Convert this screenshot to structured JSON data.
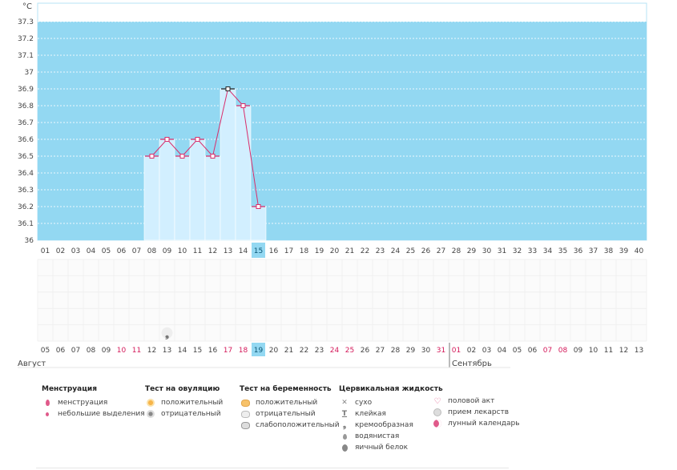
{
  "chart_data": {
    "type": "line",
    "unit_label": "°C",
    "y_ticks": [
      "36",
      "36.1",
      "36.2",
      "36.3",
      "36.4",
      "36.5",
      "36.6",
      "36.7",
      "36.8",
      "36.9",
      "37",
      "37.1",
      "37.2",
      "37.3"
    ],
    "ylim": [
      36,
      37.3
    ],
    "cycle_days": [
      "01",
      "02",
      "03",
      "04",
      "05",
      "06",
      "07",
      "08",
      "09",
      "10",
      "11",
      "12",
      "13",
      "14",
      "15",
      "16",
      "17",
      "18",
      "19",
      "20",
      "21",
      "22",
      "23",
      "24",
      "25",
      "26",
      "27",
      "28",
      "29",
      "30",
      "31",
      "32",
      "33",
      "34",
      "35",
      "36",
      "37",
      "38",
      "39",
      "40"
    ],
    "calendar_dates": [
      "05",
      "06",
      "07",
      "08",
      "09",
      "10",
      "11",
      "12",
      "13",
      "14",
      "15",
      "16",
      "17",
      "18",
      "19",
      "20",
      "21",
      "22",
      "23",
      "24",
      "25",
      "26",
      "27",
      "28",
      "29",
      "30",
      "31",
      "01",
      "02",
      "03",
      "04",
      "05",
      "06",
      "07",
      "08",
      "09",
      "10",
      "11",
      "12",
      "13"
    ],
    "weekend_date_indices": [
      5,
      6,
      12,
      13,
      19,
      20,
      26,
      27,
      33,
      34
    ],
    "highlighted_index": 14,
    "series": [
      {
        "x": [
          8,
          9,
          10,
          11,
          12,
          13,
          14,
          15
        ],
        "y": [
          36.5,
          36.6,
          36.5,
          36.6,
          36.5,
          36.9,
          36.8,
          36.2
        ]
      }
    ],
    "markers": [
      {
        "day_index": 8,
        "row": 4,
        "icon": "cream-icon",
        "symbol": "❟"
      }
    ],
    "months": [
      {
        "label": "Август",
        "start_index": 0
      },
      {
        "label": "Сентябрь",
        "start_index": 27
      }
    ],
    "grid": true
  },
  "colors": {
    "plot_bg": "#93d8f2",
    "bar_fill": "#d2efff",
    "line": "#d92d6b",
    "highlight": "#93d8f2",
    "weekend": "#d4195a"
  },
  "legend": {
    "menstruation": {
      "title": "Менструация",
      "items": [
        {
          "icon": "drop-big-icon",
          "label": "менструация"
        },
        {
          "icon": "drop-small-icon",
          "label": "небольшие выделения"
        }
      ]
    },
    "ovulation": {
      "title": "Тест на овуляцию",
      "items": [
        {
          "icon": "sun-positive-icon",
          "label": "положительный"
        },
        {
          "icon": "sun-negative-icon",
          "label": "отрицательный"
        }
      ]
    },
    "pregnancy": {
      "title": "Тест на беременность",
      "items": [
        {
          "icon": "pregnancy-positive-icon",
          "label": "положительный"
        },
        {
          "icon": "pregnancy-negative-icon",
          "label": "отрицательный"
        },
        {
          "icon": "pregnancy-weak-icon",
          "label": "слабоположительный"
        }
      ]
    },
    "cervical": {
      "title": "Цервикальная жидкость",
      "items": [
        {
          "icon": "dry-icon",
          "label": "сухо"
        },
        {
          "icon": "sticky-icon",
          "label": "клейкая"
        },
        {
          "icon": "cream-icon",
          "label": "кремообразная"
        },
        {
          "icon": "watery-icon",
          "label": "водянистая"
        },
        {
          "icon": "egg-white-icon",
          "label": "яичный белок"
        }
      ]
    },
    "other": {
      "items": [
        {
          "icon": "heart-icon",
          "label": "половой акт"
        },
        {
          "icon": "pill-icon",
          "label": "прием лекарств"
        },
        {
          "icon": "moon-icon",
          "label": "лунный календарь"
        }
      ]
    }
  }
}
